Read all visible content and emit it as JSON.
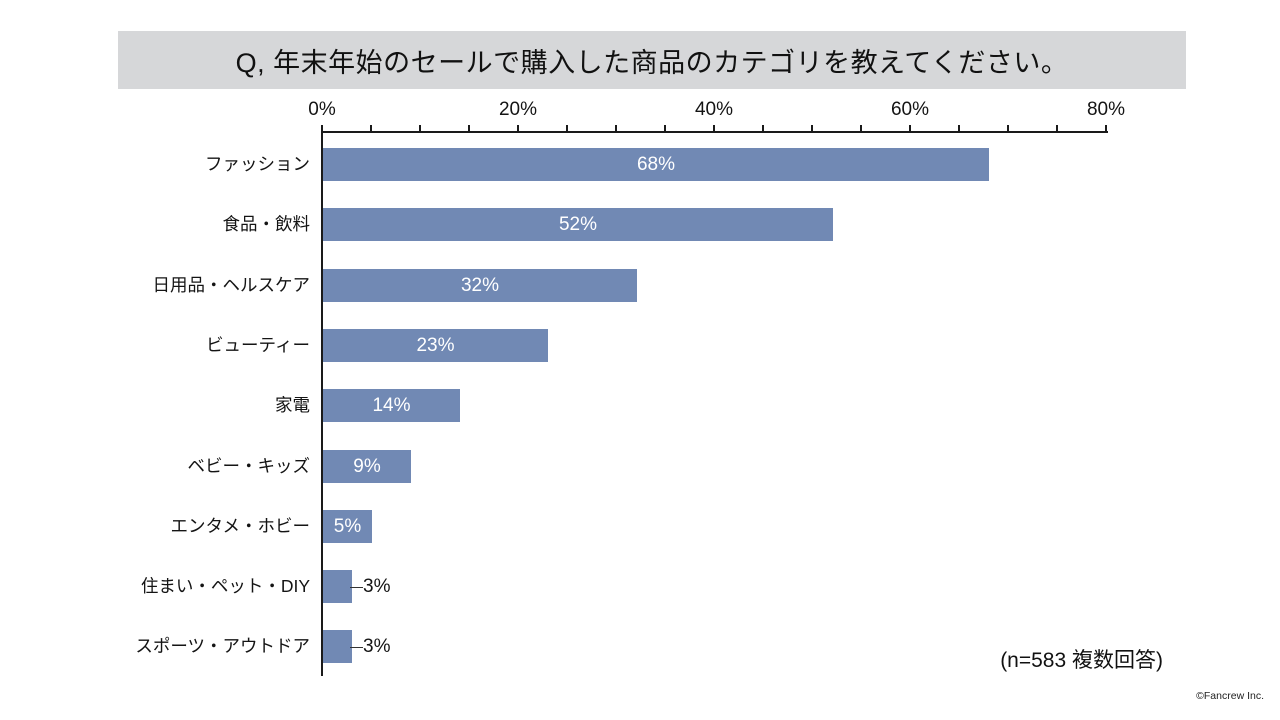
{
  "title": "Q, 年末年始のセールで購入した商品のカテゴリを教えてください。",
  "note": "(n=583 複数回答)",
  "footer": "©Fancrew Inc.",
  "colors": {
    "bar": "#7189b4",
    "title_bg": "#d6d7d9",
    "axis": "#1a1a1a",
    "label_inside": "#ffffff",
    "label_outside": "#141414"
  },
  "chart_data": {
    "type": "bar",
    "orientation": "horizontal",
    "title": "Q, 年末年始のセールで購入した商品のカテゴリを教えてください。",
    "categories": [
      "ファッション",
      "食品・飲料",
      "日用品・ヘルスケア",
      "ビューティー",
      "家電",
      "ベビー・キッズ",
      "エンタメ・ホビー",
      "住まい・ペット・DIY",
      "スポーツ・アウトドア"
    ],
    "values": [
      68,
      52,
      32,
      23,
      14,
      9,
      5,
      3,
      3
    ],
    "value_suffix": "%",
    "xlabel": "",
    "ylabel": "",
    "xlim": [
      0,
      80
    ],
    "x_tick_labels": [
      "0%",
      "20%",
      "40%",
      "60%",
      "80%"
    ],
    "x_tick_values": [
      0,
      20,
      40,
      60,
      80
    ],
    "x_minor_tick_step": 5,
    "grid": false,
    "legend": false,
    "label_placement": "inside-center; outside-end with leader line for 3% bars",
    "sample_note": "(n=583 複数回答)"
  }
}
